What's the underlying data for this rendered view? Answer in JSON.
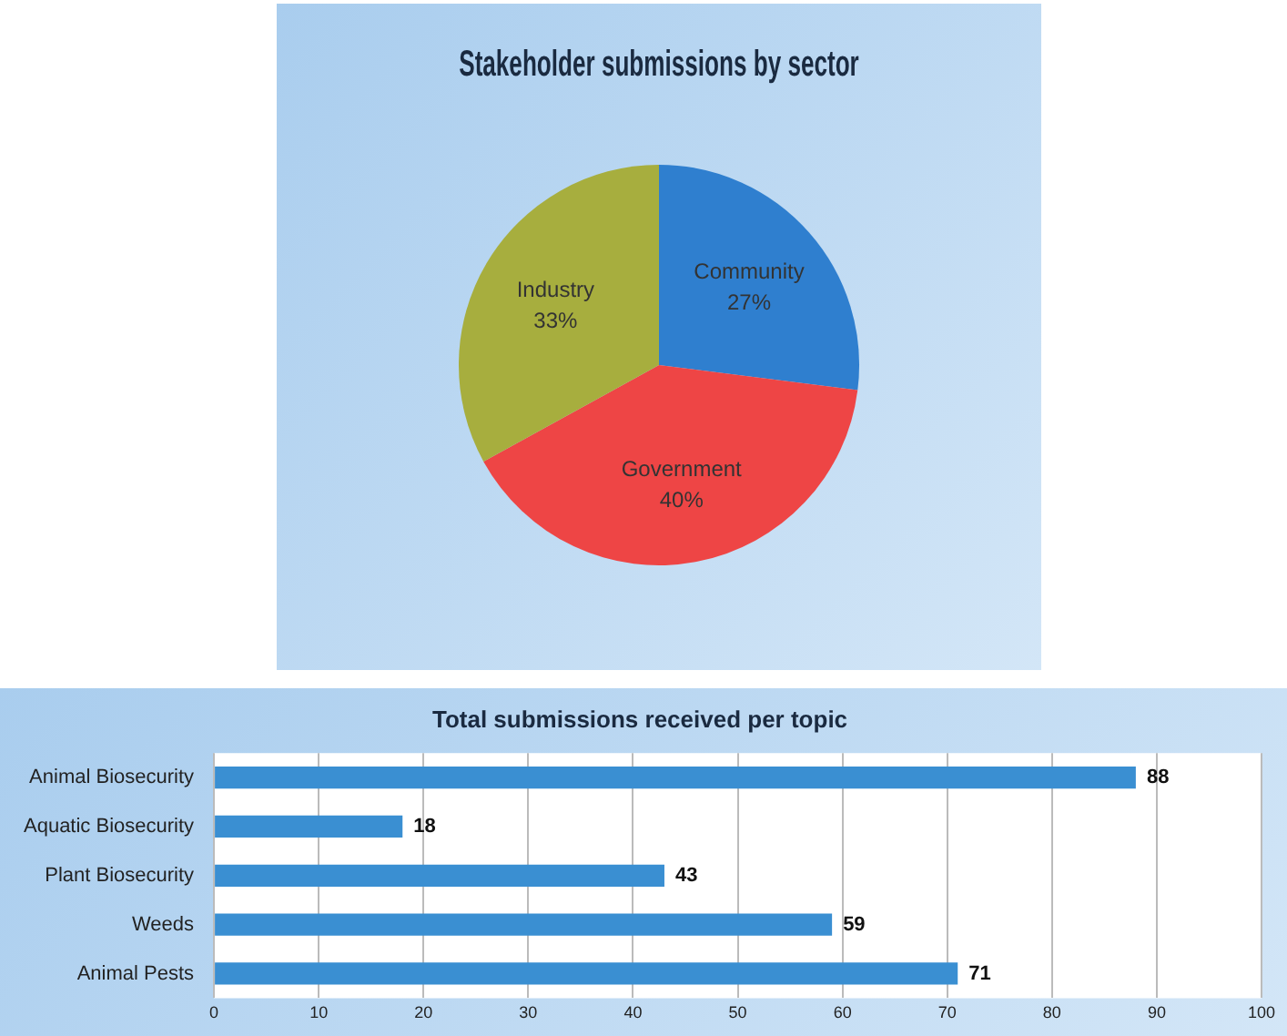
{
  "chart_data": [
    {
      "type": "pie",
      "title": "Stakeholder submissions by sector",
      "categories": [
        "Community",
        "Government",
        "Industry"
      ],
      "values": [
        27,
        40,
        33
      ],
      "colors": [
        "#2f7fcf",
        "#ee4545",
        "#a7ae3e"
      ],
      "value_labels": [
        "27%",
        "40%",
        "33%"
      ],
      "legend": false
    },
    {
      "type": "bar",
      "orientation": "horizontal",
      "title": "Total submissions received per topic",
      "categories": [
        "Animal Biosecurity",
        "Aquatic Biosecurity",
        "Plant Biosecurity",
        "Weeds",
        "Animal Pests"
      ],
      "values": [
        88,
        18,
        43,
        59,
        71
      ],
      "color": "#3a8fd2",
      "xlim": [
        0,
        100
      ],
      "xticks": [
        0,
        10,
        20,
        30,
        40,
        50,
        60,
        70,
        80,
        90,
        100
      ],
      "grid": "x",
      "data_labels": true,
      "legend": false
    }
  ]
}
